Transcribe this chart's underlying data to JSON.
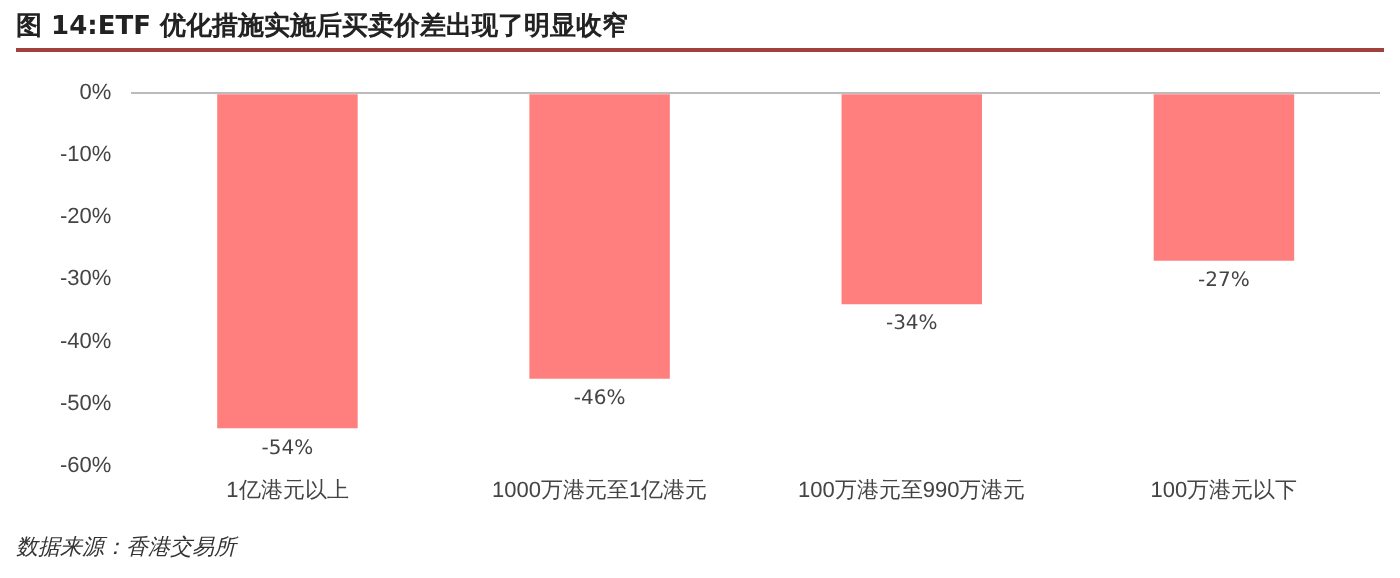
{
  "chart_data": {
    "type": "bar",
    "title": "图 14:ETF 优化措施实施后买卖价差出现了明显收窄",
    "categories": [
      "1亿港元以上",
      "1000万港元至1亿港元",
      "100万港元至990万港元",
      "100万港元以下"
    ],
    "values": [
      -54,
      -46,
      -34,
      -27
    ],
    "color": "#ff7f7f",
    "value_labels": [
      "-54%",
      "-46%",
      "-34%",
      "-27%"
    ],
    "ylim": [
      -60,
      0
    ],
    "yticks": [
      {
        "value": 0,
        "label": "0%"
      },
      {
        "value": -10,
        "label": "-10%"
      },
      {
        "value": -20,
        "label": "-20%"
      },
      {
        "value": -30,
        "label": "-30%"
      },
      {
        "value": -40,
        "label": "-40%"
      },
      {
        "value": -50,
        "label": "-50%"
      },
      {
        "value": -60,
        "label": "-60%"
      }
    ],
    "grid": false,
    "legend": false,
    "annotations": [
      "数据来源：香港交易所"
    ]
  }
}
